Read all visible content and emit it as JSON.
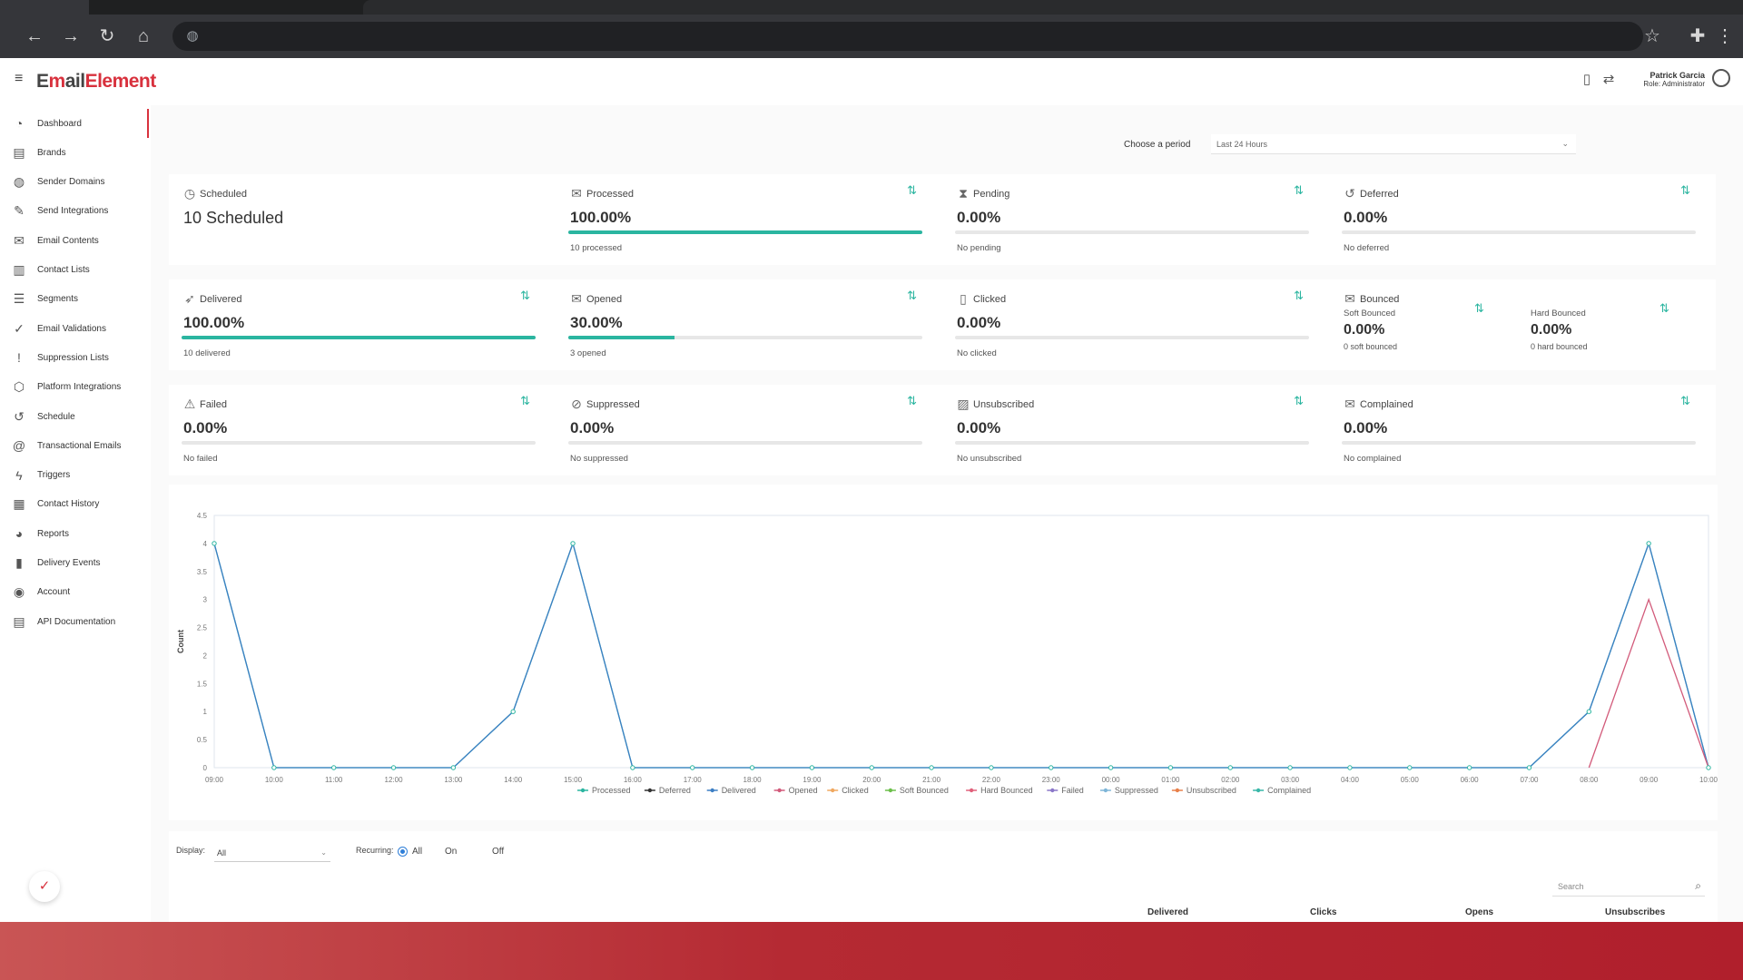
{
  "app": {
    "logo_prefix": "E",
    "logo_mark": "m",
    "logo_mid": "ail",
    "logo_suffix": "Element"
  },
  "user": {
    "name": "Patrick Garcia",
    "role": "Role: Administrator"
  },
  "sidebar": {
    "items": [
      {
        "label": "Dashboard",
        "icon": "dashboard-icon",
        "glyph": "◔"
      },
      {
        "label": "Brands",
        "icon": "brands-icon",
        "glyph": "▤"
      },
      {
        "label": "Sender Domains",
        "icon": "globe-icon",
        "glyph": "◍"
      },
      {
        "label": "Send Integrations",
        "icon": "wrench-icon",
        "glyph": "✎"
      },
      {
        "label": "Email Contents",
        "icon": "envelope-icon",
        "glyph": "✉"
      },
      {
        "label": "Contact Lists",
        "icon": "list-icon",
        "glyph": "▥"
      },
      {
        "label": "Segments",
        "icon": "segments-icon",
        "glyph": "☰"
      },
      {
        "label": "Email Validations",
        "icon": "check-circle-icon",
        "glyph": "✓"
      },
      {
        "label": "Suppression Lists",
        "icon": "alert-circle-icon",
        "glyph": "!"
      },
      {
        "label": "Platform Integrations",
        "icon": "tag-icon",
        "glyph": "⬡"
      },
      {
        "label": "Schedule",
        "icon": "history-icon",
        "glyph": "↺"
      },
      {
        "label": "Transactional Emails",
        "icon": "at-icon",
        "glyph": "@"
      },
      {
        "label": "Triggers",
        "icon": "bolt-icon",
        "glyph": "ϟ"
      },
      {
        "label": "Contact History",
        "icon": "clipboard-icon",
        "glyph": "▦"
      },
      {
        "label": "Reports",
        "icon": "pie-icon",
        "glyph": "◕"
      },
      {
        "label": "Delivery Events",
        "icon": "bar-chart-icon",
        "glyph": "▮"
      },
      {
        "label": "Account",
        "icon": "account-icon",
        "glyph": "◉"
      },
      {
        "label": "API Documentation",
        "icon": "document-icon",
        "glyph": "▤"
      }
    ]
  },
  "period": {
    "label": "Choose a period",
    "value": "Last 24 Hours"
  },
  "cards": {
    "scheduled": {
      "title": "Scheduled",
      "value": "10 Scheduled"
    },
    "processed": {
      "title": "Processed",
      "value": "100.00%",
      "sub": "10 processed",
      "fill": 1.0
    },
    "pending": {
      "title": "Pending",
      "value": "0.00%",
      "sub": "No pending",
      "fill": 0
    },
    "deferred": {
      "title": "Deferred",
      "value": "0.00%",
      "sub": "No deferred",
      "fill": 0
    },
    "delivered": {
      "title": "Delivered",
      "value": "100.00%",
      "sub": "10 delivered",
      "fill": 1.0
    },
    "opened": {
      "title": "Opened",
      "value": "30.00%",
      "sub": "3 opened",
      "fill": 0.3
    },
    "clicked": {
      "title": "Clicked",
      "value": "0.00%",
      "sub": "No clicked",
      "fill": 0
    },
    "bounced": {
      "title": "Bounced",
      "soft_label": "Soft Bounced",
      "soft_value": "0.00%",
      "soft_sub": "0 soft bounced",
      "hard_label": "Hard Bounced",
      "hard_value": "0.00%",
      "hard_sub": "0 hard bounced"
    },
    "failed": {
      "title": "Failed",
      "value": "0.00%",
      "sub": "No failed",
      "fill": 0
    },
    "suppressed": {
      "title": "Suppressed",
      "value": "0.00%",
      "sub": "No suppressed",
      "fill": 0
    },
    "unsubscribed": {
      "title": "Unsubscribed",
      "value": "0.00%",
      "sub": "No unsubscribed",
      "fill": 0
    },
    "complained": {
      "title": "Complained",
      "value": "0.00%",
      "sub": "No complained",
      "fill": 0
    }
  },
  "chart_data": {
    "type": "line",
    "ylabel": "Count",
    "ylim": [
      0,
      4.5
    ],
    "yticks": [
      "0",
      "0.5",
      "1",
      "1.5",
      "2",
      "2.5",
      "3",
      "3.5",
      "4",
      "4.5"
    ],
    "x": [
      "09:00",
      "10:00",
      "11:00",
      "12:00",
      "13:00",
      "14:00",
      "15:00",
      "16:00",
      "17:00",
      "18:00",
      "19:00",
      "20:00",
      "21:00",
      "22:00",
      "23:00",
      "00:00",
      "01:00",
      "02:00",
      "03:00",
      "04:00",
      "05:00",
      "06:00",
      "07:00",
      "08:00",
      "09:00",
      "10:00"
    ],
    "legend": [
      "Processed",
      "Deferred",
      "Delivered",
      "Opened",
      "Clicked",
      "Soft Bounced",
      "Hard Bounced",
      "Failed",
      "Suppressed",
      "Unsubscribed",
      "Complained"
    ],
    "legend_colors": [
      "#2bb5a0",
      "#333333",
      "#3d7fc4",
      "#d25a7a",
      "#f0a860",
      "#6cbf4a",
      "#e0607a",
      "#8a77c9",
      "#7fb6d8",
      "#e8804a",
      "#39b7a8"
    ],
    "series": [
      {
        "name": "Processed",
        "color": "#2bb5a0",
        "values": [
          4,
          0,
          0,
          0,
          0,
          1,
          4,
          0,
          0,
          0,
          0,
          0,
          0,
          0,
          0,
          0,
          0,
          0,
          0,
          0,
          0,
          0,
          0,
          1,
          4,
          0
        ]
      },
      {
        "name": "Delivered",
        "color": "#3d7fc4",
        "values": [
          4,
          0,
          0,
          0,
          0,
          1,
          4,
          0,
          0,
          0,
          0,
          0,
          0,
          0,
          0,
          0,
          0,
          0,
          0,
          0,
          0,
          0,
          0,
          1,
          4,
          0
        ]
      },
      {
        "name": "Opened",
        "color": "#d25a7a",
        "values": [
          0,
          0,
          0,
          0,
          0,
          0,
          0,
          0,
          0,
          0,
          0,
          0,
          0,
          0,
          0,
          0,
          0,
          0,
          0,
          0,
          0,
          0,
          0,
          0,
          3,
          0
        ]
      }
    ]
  },
  "filters": {
    "display_label": "Display:",
    "display_value": "All",
    "recurring_label": "Recurring:",
    "recurring_options": [
      "All",
      "On",
      "Off"
    ],
    "search_placeholder": "Search",
    "columns": [
      "Delivered",
      "Clicks",
      "Opens",
      "Unsubscribes"
    ]
  }
}
